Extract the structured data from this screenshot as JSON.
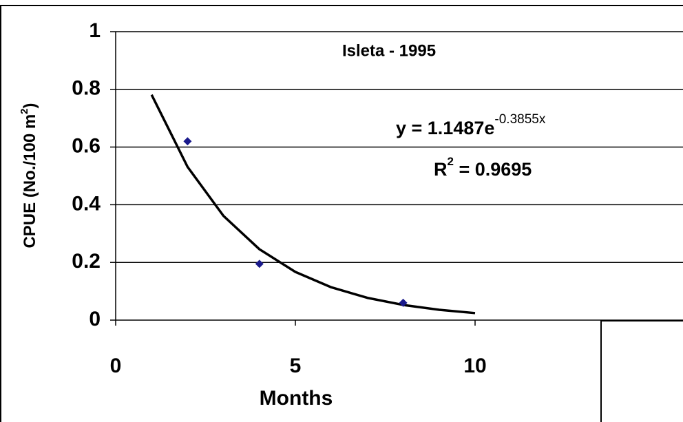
{
  "chart_data": {
    "type": "scatter",
    "title": "Isleta - 1995",
    "xlabel": "Months",
    "ylabel": {
      "base": "CPUE (No./100 m",
      "exponent": "2",
      "rest": ")"
    },
    "equation": {
      "base": "y = 1.1487e",
      "exponent": "-0.3855x"
    },
    "r_squared": {
      "base": "R",
      "exponent": "2",
      "rest": " = 0.9695"
    },
    "x": [
      2,
      4,
      8
    ],
    "values": [
      0.62,
      0.195,
      0.06
    ],
    "color": "#1a1a8c",
    "trendline": {
      "x": [
        1,
        2,
        3,
        4,
        5,
        6,
        7,
        8,
        9,
        10
      ],
      "values": [
        0.7812,
        0.5313,
        0.3613,
        0.2457,
        0.1671,
        0.1137,
        0.0773,
        0.0526,
        0.0358,
        0.0243
      ],
      "color": "#000000"
    },
    "xlim": [
      0,
      15
    ],
    "ylim": [
      0,
      1
    ],
    "xticks": [
      0,
      5,
      10
    ],
    "yticks": [
      0,
      0.2,
      0.4,
      0.6,
      0.8,
      1
    ],
    "grid": true
  }
}
